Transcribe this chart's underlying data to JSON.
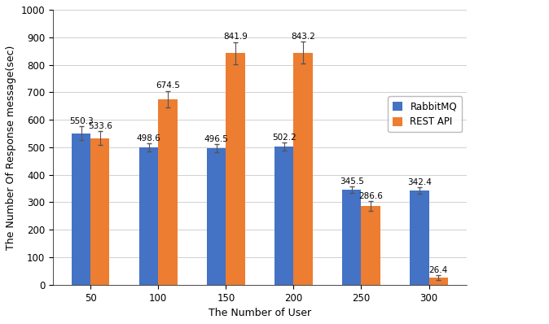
{
  "categories": [
    "50",
    "100",
    "150",
    "200",
    "250",
    "300"
  ],
  "rabbit_values": [
    550.3,
    498.6,
    496.5,
    502.2,
    345.5,
    342.4
  ],
  "rest_values": [
    533.6,
    674.5,
    841.9,
    843.2,
    286.6,
    26.4
  ],
  "rabbit_errors": [
    25,
    15,
    15,
    15,
    12,
    12
  ],
  "rest_errors": [
    25,
    30,
    40,
    40,
    18,
    8
  ],
  "rabbit_color": "#4472C4",
  "rest_color": "#ED7D31",
  "xlabel": "The Number of User",
  "ylabel": "The Number Of Response message(sec)",
  "ylim": [
    0,
    1000
  ],
  "yticks": [
    0,
    100,
    200,
    300,
    400,
    500,
    600,
    700,
    800,
    900,
    1000
  ],
  "legend_labels": [
    "RabbitMQ",
    "REST API"
  ],
  "bar_width": 0.28,
  "label_fontsize": 7.5,
  "axis_label_fontsize": 9,
  "tick_fontsize": 8.5,
  "legend_fontsize": 8.5,
  "background_color": "#ffffff",
  "grid_color": "#d0d0d0"
}
